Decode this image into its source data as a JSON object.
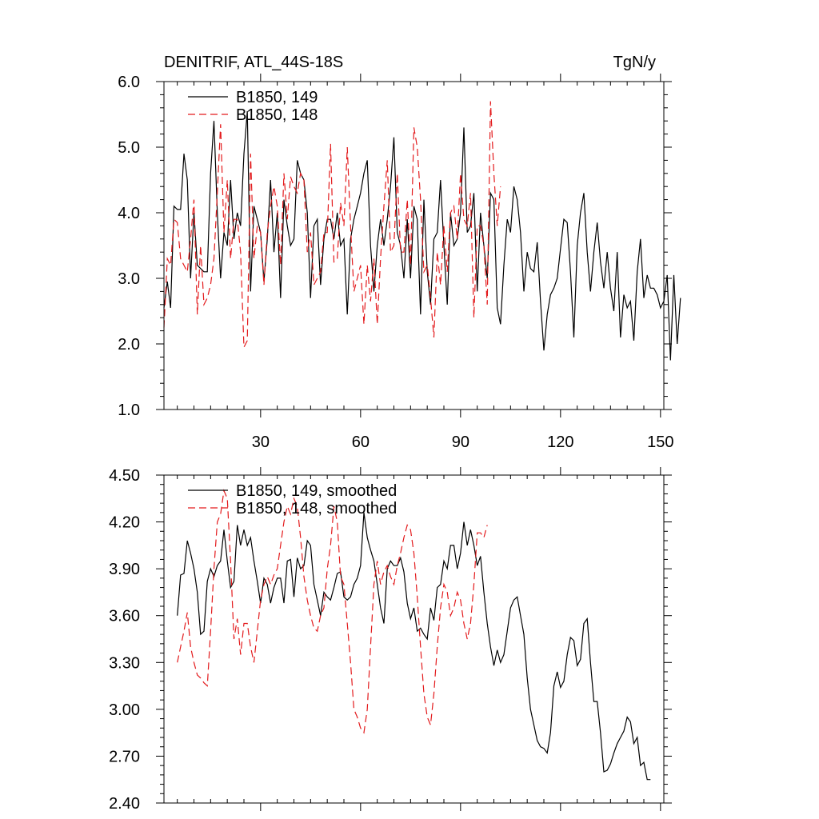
{
  "top_left_title": "DENITRIF, ATL_44S-18S",
  "top_right_title": "TgN/y",
  "colors": {
    "run149": "#000000",
    "run148": "#e31a1c"
  },
  "chart_data": [
    {
      "type": "line",
      "xlim": [
        1,
        151
      ],
      "ylim": [
        1.0,
        6.0
      ],
      "x_ticks": [
        30,
        60,
        90,
        120,
        150
      ],
      "x_tick_labels": [
        "30",
        "60",
        "90",
        "120",
        "150"
      ],
      "y_ticks": [
        1.0,
        2.0,
        3.0,
        4.0,
        5.0,
        6.0
      ],
      "y_tick_labels": [
        "1.0",
        "2.0",
        "3.0",
        "4.0",
        "5.0",
        "6.0"
      ],
      "legend_position": "top-left",
      "series": [
        {
          "name": "B1850, 149",
          "style": "solid",
          "x_start": 1,
          "values": [
            2.55,
            2.95,
            2.55,
            4.1,
            4.05,
            4.05,
            4.9,
            4.5,
            3.0,
            4.0,
            3.2,
            3.15,
            3.1,
            3.1,
            4.6,
            5.4,
            4.0,
            3.0,
            3.7,
            3.5,
            4.5,
            3.6,
            4.0,
            3.8,
            4.9,
            5.55,
            2.8,
            4.1,
            3.9,
            3.7,
            2.95,
            3.6,
            4.5,
            3.4,
            4.0,
            2.7,
            4.2,
            3.8,
            3.5,
            3.6,
            4.8,
            4.6,
            4.5,
            4.0,
            2.7,
            3.8,
            3.9,
            2.9,
            3.6,
            3.9,
            3.9,
            3.6,
            4.0,
            3.5,
            3.6,
            2.45,
            3.6,
            3.9,
            4.1,
            4.3,
            4.6,
            4.8,
            3.5,
            2.8,
            3.5,
            3.9,
            3.5,
            3.9,
            4.4,
            5.15,
            3.7,
            3.5,
            3.0,
            3.9,
            3.0,
            4.1,
            3.9,
            2.45,
            4.2,
            3.1,
            2.6,
            3.6,
            3.7,
            4.5,
            3.5,
            2.6,
            4.0,
            3.5,
            3.6,
            4.0,
            5.3,
            3.7,
            3.8,
            4.3,
            2.8,
            4.0,
            3.5,
            3.0,
            4.3,
            4.2,
            2.55,
            2.3,
            3.2,
            3.9,
            3.7,
            4.4,
            4.2,
            3.7,
            2.8,
            3.4,
            3.15,
            3.1,
            3.55,
            2.65,
            1.9,
            2.45,
            2.75,
            2.85,
            3.0,
            3.45,
            3.9,
            3.85,
            3.1,
            2.1,
            3.5,
            4.0,
            4.3,
            3.4,
            2.8,
            3.4,
            3.85,
            3.25,
            2.85,
            3.4,
            2.85,
            2.5,
            3.4,
            2.1,
            2.75,
            2.55,
            2.65,
            2.05,
            3.1,
            3.6,
            2.7,
            3.05,
            2.85,
            2.85,
            2.75,
            2.55,
            2.65,
            3.05,
            1.75,
            3.05,
            2.0,
            2.7
          ]
        },
        {
          "name": "B1850, 148",
          "style": "dashed",
          "x_start": 1,
          "values": [
            2.25,
            3.3,
            3.2,
            3.9,
            3.85,
            3.3,
            3.2,
            3.1,
            3.6,
            4.2,
            2.45,
            3.5,
            2.6,
            2.7,
            2.9,
            3.3,
            4.3,
            5.35,
            3.7,
            4.5,
            3.3,
            3.9,
            3.9,
            3.4,
            1.95,
            2.05,
            4.9,
            3.3,
            3.8,
            3.7,
            2.9,
            3.7,
            4.1,
            4.4,
            4.1,
            3.2,
            4.6,
            3.9,
            4.55,
            4.4,
            4.3,
            4.6,
            4.5,
            3.4,
            3.7,
            2.9,
            3.0,
            3.1,
            3.7,
            3.7,
            5.05,
            3.25,
            3.3,
            4.15,
            3.8,
            5.0,
            3.8,
            2.8,
            3.0,
            3.2,
            2.3,
            3.2,
            2.65,
            3.3,
            2.3,
            3.3,
            4.1,
            4.8,
            3.4,
            3.5,
            4.6,
            3.4,
            3.4,
            4.2,
            3.2,
            5.3,
            5.0,
            4.2,
            3.1,
            3.2,
            2.7,
            2.1,
            3.4,
            2.9,
            3.8,
            3.1,
            4.0,
            4.1,
            3.6,
            4.6,
            3.9,
            3.8,
            4.3,
            2.4,
            3.8,
            3.8,
            3.5,
            2.6,
            5.7,
            4.6,
            3.8,
            4.4
          ]
        }
      ]
    },
    {
      "type": "line",
      "xlim": [
        1,
        151
      ],
      "ylim": [
        2.4,
        4.5
      ],
      "x_ticks": [
        30,
        60,
        90,
        120,
        150
      ],
      "y_ticks": [
        2.4,
        2.7,
        3.0,
        3.3,
        3.6,
        3.9,
        4.2,
        4.5
      ],
      "y_tick_labels": [
        "2.40",
        "2.70",
        "3.00",
        "3.30",
        "3.60",
        "3.90",
        "4.20",
        "4.50"
      ],
      "legend_position": "top-left",
      "series": [
        {
          "name": "B1850, 149, smoothed",
          "style": "solid",
          "x_start": 5,
          "values": [
            3.6,
            3.86,
            3.87,
            4.08,
            4.0,
            3.9,
            3.75,
            3.48,
            3.5,
            3.82,
            3.9,
            3.85,
            3.92,
            3.95,
            4.15,
            3.95,
            3.78,
            3.82,
            4.18,
            4.05,
            4.15,
            4.05,
            4.1,
            3.95,
            3.82,
            3.68,
            3.84,
            3.8,
            3.68,
            3.78,
            3.84,
            3.84,
            3.68,
            3.95,
            3.96,
            3.72,
            3.97,
            3.9,
            3.92,
            4.08,
            4.05,
            3.8,
            3.7,
            3.6,
            3.75,
            3.72,
            3.7,
            3.78,
            3.87,
            3.88,
            3.72,
            3.7,
            3.72,
            3.8,
            3.84,
            3.92,
            4.26,
            4.1,
            4.02,
            3.95,
            3.8,
            3.65,
            3.55,
            3.9,
            3.95,
            3.92,
            3.92,
            3.97,
            3.88,
            3.68,
            3.58,
            3.65,
            3.5,
            3.52,
            3.48,
            3.45,
            3.65,
            3.57,
            3.78,
            3.8,
            3.95,
            3.9,
            4.05,
            4.05,
            3.9,
            4.0,
            4.2,
            4.05,
            4.15,
            4.05,
            3.92,
            3.98,
            3.75,
            3.55,
            3.4,
            3.28,
            3.38,
            3.3,
            3.35,
            3.5,
            3.65,
            3.7,
            3.72,
            3.6,
            3.48,
            3.2,
            3.0,
            2.9,
            2.8,
            2.76,
            2.75,
            2.72,
            2.85,
            3.15,
            3.24,
            3.14,
            3.18,
            3.35,
            3.46,
            3.44,
            3.28,
            3.32,
            3.55,
            3.58,
            3.3,
            3.05,
            3.05,
            2.85,
            2.6,
            2.61,
            2.65,
            2.72,
            2.78,
            2.82,
            2.86,
            2.95,
            2.92,
            2.78,
            2.82,
            2.64,
            2.66,
            2.55,
            2.55
          ]
        },
        {
          "name": "B1850, 148, smoothed",
          "style": "dashed",
          "x_start": 5,
          "values": [
            3.3,
            3.4,
            3.5,
            3.62,
            3.4,
            3.3,
            3.22,
            3.2,
            3.17,
            3.15,
            3.5,
            3.9,
            4.2,
            4.25,
            4.4,
            4.35,
            3.95,
            3.45,
            3.58,
            3.35,
            3.55,
            3.55,
            3.4,
            3.3,
            3.5,
            3.7,
            3.8,
            3.85,
            3.8,
            3.86,
            3.9,
            4.05,
            4.2,
            4.3,
            4.25,
            4.35,
            4.3,
            4.1,
            3.85,
            3.7,
            3.6,
            3.52,
            3.5,
            3.6,
            3.65,
            3.9,
            4.05,
            4.3,
            4.2,
            3.85,
            3.8,
            3.55,
            3.3,
            3.0,
            2.95,
            2.88,
            2.85,
            3.0,
            3.4,
            3.8,
            3.95,
            3.8,
            3.88,
            3.92,
            3.85,
            3.8,
            3.92,
            4.0,
            4.1,
            4.18,
            4.15,
            4.0,
            3.72,
            3.4,
            3.1,
            2.95,
            2.9,
            3.1,
            3.4,
            3.65,
            3.8,
            3.75,
            3.6,
            3.65,
            3.75,
            3.7,
            3.55,
            3.45,
            3.55,
            3.8,
            4.13,
            4.13,
            4.1,
            4.18
          ]
        }
      ]
    }
  ]
}
